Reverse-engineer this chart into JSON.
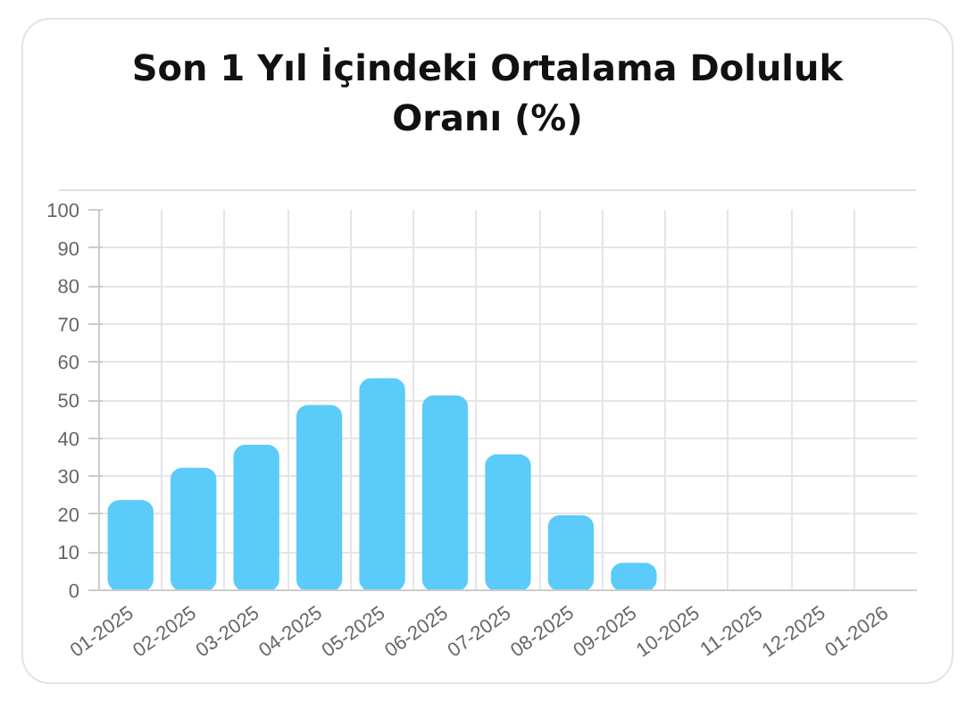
{
  "chart_data": {
    "type": "bar",
    "title": "Son 1 Yıl İçindeki Ortalama Doluluk Oranı (%)",
    "categories": [
      "01-2025",
      "02-2025",
      "03-2025",
      "04-2025",
      "05-2025",
      "06-2025",
      "07-2025",
      "08-2025",
      "09-2025",
      "10-2025",
      "11-2025",
      "12-2025",
      "01-2026"
    ],
    "values": [
      23.5,
      32,
      38,
      48.5,
      55.5,
      51,
      35.5,
      19.5,
      7,
      0,
      0,
      0,
      0
    ],
    "color": "#5bcbfa",
    "ylim": [
      0,
      100
    ],
    "yticks": [
      0,
      10,
      20,
      30,
      40,
      50,
      60,
      70,
      80,
      90,
      100
    ],
    "grid": true
  }
}
